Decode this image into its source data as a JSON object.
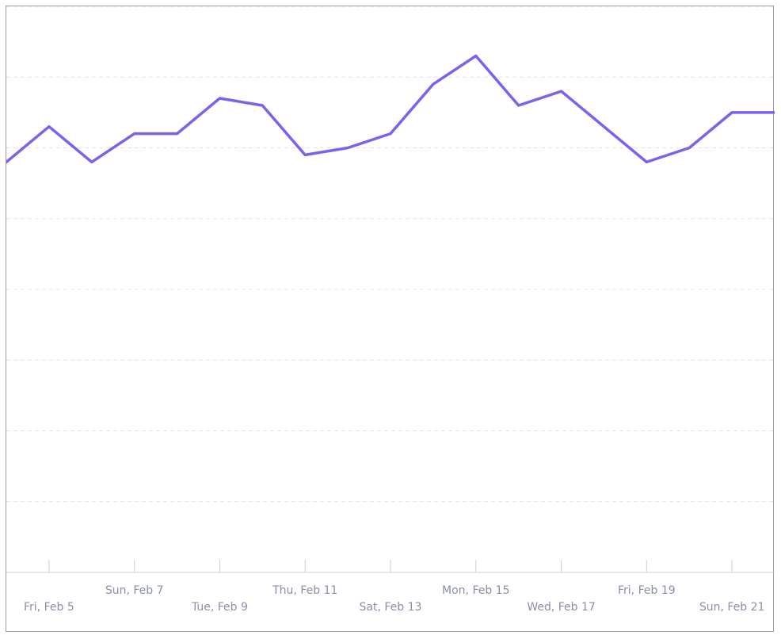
{
  "chart_data": {
    "type": "line",
    "title": "",
    "xlabel": "",
    "ylabel": "",
    "grid": true,
    "x_tick_labels": [
      "Fri, Feb 5",
      "Sun, Feb 7",
      "Tue, Feb 9",
      "Thu, Feb 11",
      "Sat, Feb 13",
      "Mon, Feb 15",
      "Wed, Feb 17",
      "Fri, Feb 19",
      "Sun, Feb 21"
    ],
    "x": [
      "Feb 4",
      "Feb 5",
      "Feb 6",
      "Feb 7",
      "Feb 8",
      "Feb 9",
      "Feb 10",
      "Feb 11",
      "Feb 12",
      "Feb 13",
      "Feb 14",
      "Feb 15",
      "Feb 16",
      "Feb 17",
      "Feb 18",
      "Feb 19",
      "Feb 20",
      "Feb 21",
      "Feb 22"
    ],
    "values": [
      5.8,
      6.3,
      5.8,
      6.2,
      6.2,
      6.7,
      6.6,
      5.9,
      6.0,
      6.2,
      6.9,
      7.3,
      6.6,
      6.8,
      6.3,
      5.8,
      6.0,
      6.5,
      6.5
    ],
    "ylim": [
      0,
      8
    ],
    "colors": {
      "line": "#7b61ee",
      "grid": "#e2e4ec",
      "axis": "#c9cde0",
      "label": "#8a8fa8"
    }
  }
}
